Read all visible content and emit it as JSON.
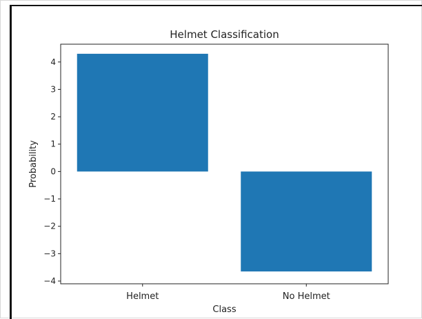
{
  "chart_data": {
    "type": "bar",
    "title": "Helmet Classification",
    "xlabel": "Class",
    "ylabel": "Probability",
    "categories": [
      "Helmet",
      "No Helmet"
    ],
    "values": [
      4.3,
      -3.65
    ],
    "ylim": [
      -4.1,
      4.65
    ],
    "yticks": [
      -4,
      -3,
      -2,
      -1,
      0,
      1,
      2,
      3,
      4
    ],
    "ytick_labels": [
      "−4",
      "−3",
      "−2",
      "−1",
      "0",
      "1",
      "2",
      "3",
      "4"
    ],
    "bar_color": "#1f77b4",
    "grid": false,
    "legend": "none"
  }
}
